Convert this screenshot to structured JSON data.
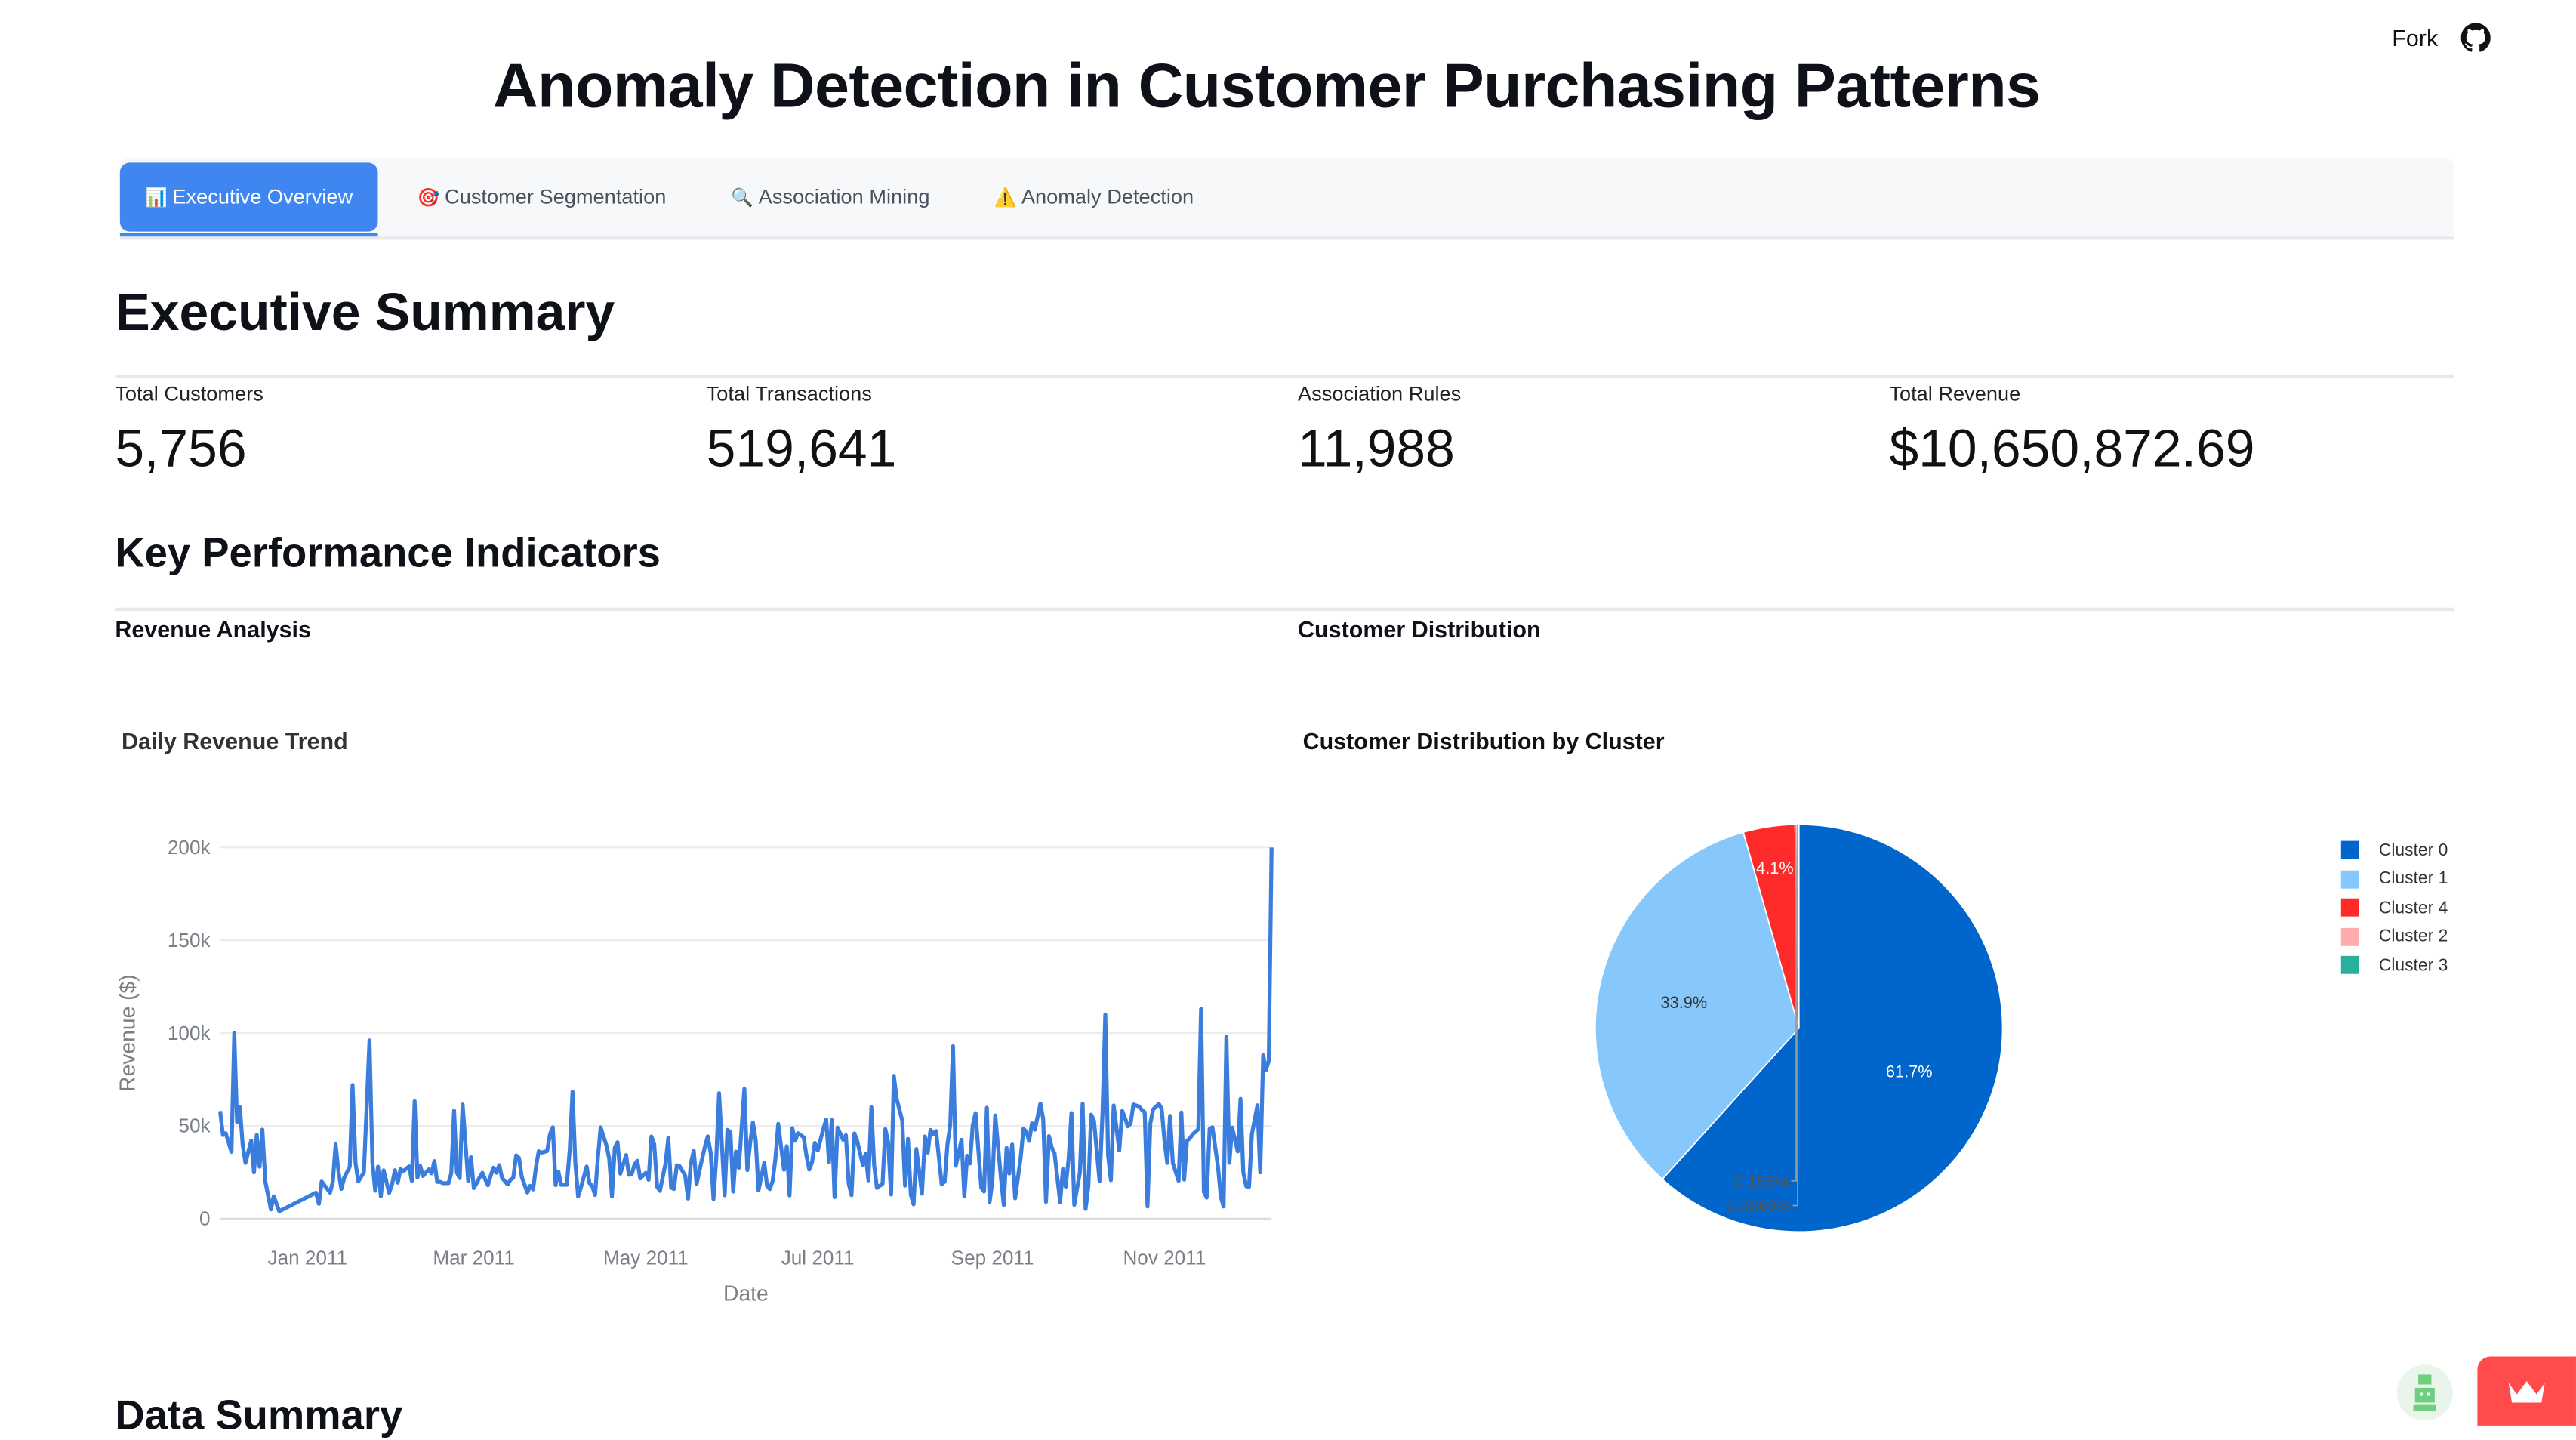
{
  "topbar": {
    "fork_label": "Fork",
    "github_icon": "github-icon"
  },
  "title": "Anomaly Detection in Customer Purchasing Patterns",
  "tabs": [
    {
      "icon": "📊",
      "label": "Executive Overview",
      "active": true
    },
    {
      "icon": "🎯",
      "label": "Customer Segmentation",
      "active": false
    },
    {
      "icon": "🔍",
      "label": "Association Mining",
      "active": false
    },
    {
      "icon": "⚠️",
      "label": "Anomaly Detection",
      "active": false
    }
  ],
  "executive_summary": {
    "heading": "Executive Summary",
    "metrics": [
      {
        "label": "Total Customers",
        "value": "5,756"
      },
      {
        "label": "Total Transactions",
        "value": "519,641"
      },
      {
        "label": "Association Rules",
        "value": "11,988"
      },
      {
        "label": "Total Revenue",
        "value": "$10,650,872.69"
      }
    ]
  },
  "kpi": {
    "heading": "Key Performance Indicators",
    "left_subheading": "Revenue Analysis",
    "right_subheading": "Customer Distribution"
  },
  "data_summary": {
    "heading": "Data Summary"
  },
  "colors": {
    "accent": "#3f86f0",
    "line": "#3b7ddd",
    "streamlit_red": "#ff4b4b"
  },
  "chart_data": [
    {
      "type": "line",
      "title": "Daily Revenue Trend",
      "xlabel": "Date",
      "ylabel": "Revenue ($)",
      "x_range": [
        "2010-12-01",
        "2011-12-09"
      ],
      "ylim": [
        0,
        210000
      ],
      "yticks": [
        0,
        50000,
        100000,
        150000,
        200000
      ],
      "ytick_labels": [
        "0",
        "50k",
        "100k",
        "150k",
        "200k"
      ],
      "xticks": [
        "2011-01-01",
        "2011-03-01",
        "2011-05-01",
        "2011-07-01",
        "2011-09-01",
        "2011-11-01"
      ],
      "xtick_labels": [
        "Jan 2011",
        "Mar 2011",
        "May 2011",
        "Jul 2011",
        "Sep 2011",
        "Nov 2011"
      ],
      "anchor_points": [
        [
          "2010-12-01",
          58000
        ],
        [
          "2010-12-02",
          45000
        ],
        [
          "2010-12-03",
          46000
        ],
        [
          "2010-12-05",
          36000
        ],
        [
          "2010-12-06",
          100000
        ],
        [
          "2010-12-07",
          52000
        ],
        [
          "2010-12-08",
          60000
        ],
        [
          "2010-12-09",
          40000
        ],
        [
          "2010-12-10",
          30000
        ],
        [
          "2010-12-12",
          42000
        ],
        [
          "2010-12-13",
          25000
        ],
        [
          "2010-12-14",
          45000
        ],
        [
          "2010-12-15",
          28000
        ],
        [
          "2010-12-16",
          48000
        ],
        [
          "2010-12-17",
          20000
        ],
        [
          "2010-12-19",
          5000
        ],
        [
          "2010-12-20",
          12000
        ],
        [
          "2010-12-22",
          4000
        ],
        [
          "2011-01-04",
          14000
        ],
        [
          "2011-01-05",
          8000
        ],
        [
          "2011-01-06",
          20000
        ],
        [
          "2011-01-07",
          18000
        ],
        [
          "2011-01-09",
          14000
        ],
        [
          "2011-01-10",
          20000
        ],
        [
          "2011-01-11",
          40000
        ],
        [
          "2011-01-12",
          25000
        ],
        [
          "2011-01-13",
          16000
        ],
        [
          "2011-01-14",
          22000
        ],
        [
          "2011-01-16",
          28000
        ],
        [
          "2011-01-17",
          72000
        ],
        [
          "2011-01-18",
          30000
        ],
        [
          "2011-01-19",
          20000
        ],
        [
          "2011-01-21",
          25000
        ],
        [
          "2011-01-23",
          96000
        ],
        [
          "2011-01-24",
          30000
        ],
        [
          "2011-01-25",
          15000
        ],
        [
          "2011-01-26",
          28000
        ],
        [
          "2011-01-27",
          12000
        ],
        [
          "2011-01-28",
          26000
        ],
        [
          "2011-06-05",
          70000
        ],
        [
          "2011-07-20",
          60000
        ],
        [
          "2011-09-18",
          62000
        ],
        [
          "2011-10-11",
          110000
        ],
        [
          "2011-11-14",
          113000
        ],
        [
          "2011-11-23",
          98000
        ],
        [
          "2011-12-05",
          25000
        ],
        [
          "2011-12-06",
          88000
        ],
        [
          "2011-12-07",
          80000
        ],
        [
          "2011-12-08",
          85000
        ],
        [
          "2011-12-09",
          200000
        ]
      ]
    },
    {
      "type": "pie",
      "title": "Customer Distribution by Cluster",
      "slices": [
        {
          "label": "Cluster 0",
          "percent": 61.7,
          "color": "#0066cc"
        },
        {
          "label": "Cluster 1",
          "percent": 33.9,
          "color": "#86c8fb"
        },
        {
          "label": "Cluster 4",
          "percent": 4.1,
          "color": "#ff2b2b"
        },
        {
          "label": "Cluster 2",
          "percent": 0.156,
          "color": "#ffabab"
        },
        {
          "label": "Cluster 3",
          "percent": 0.0869,
          "color": "#29b09d"
        }
      ],
      "slice_labels": [
        "61.7%",
        "33.9%",
        "4.1%",
        "0.156%",
        "0.0869%"
      ],
      "legend_position": "top-right"
    }
  ]
}
